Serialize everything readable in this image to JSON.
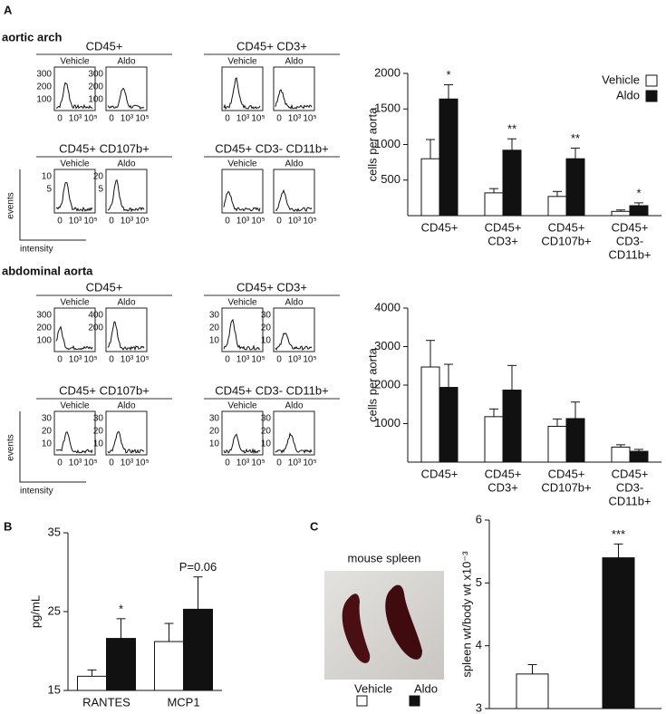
{
  "figure": {
    "panel_labels": [
      "A",
      "B",
      "C"
    ],
    "xticks": [
      "0",
      "10³",
      "10⁵"
    ],
    "axis_cartoon": {
      "y": "events",
      "x": "intensity"
    },
    "sections": [
      {
        "title": "aortic arch",
        "groups": [
          {
            "title": "CD45+",
            "panels": [
              {
                "label": "Vehicle",
                "yticks": [
                  "300",
                  "200",
                  "100"
                ]
              },
              {
                "label": "Aldo",
                "yticks": [
                  "300",
                  "200",
                  "100"
                ]
              }
            ]
          },
          {
            "title": "CD45+ CD3+",
            "panels": [
              {
                "label": "Vehicle",
                "yticks": []
              },
              {
                "label": "Aldo",
                "yticks": []
              }
            ]
          },
          {
            "title": "CD45+ CD107b+",
            "panels": [
              {
                "label": "Vehicle",
                "yticks": [
                  "10",
                  "5"
                ]
              },
              {
                "label": "Aldo",
                "yticks": [
                  "20",
                  "5"
                ]
              }
            ]
          },
          {
            "title": "CD45+ CD3- CD11b+",
            "panels": [
              {
                "label": "Vehicle",
                "yticks": []
              },
              {
                "label": "Aldo",
                "yticks": []
              }
            ]
          }
        ]
      },
      {
        "title": "abdominal aorta",
        "groups": [
          {
            "title": "CD45+",
            "panels": [
              {
                "label": "Vehicle",
                "yticks": [
                  "300",
                  "200",
                  "100"
                ]
              },
              {
                "label": "Aldo",
                "yticks": [
                  "400",
                  "200"
                ]
              }
            ]
          },
          {
            "title": "CD45+ CD3+",
            "panels": [
              {
                "label": "Vehicle",
                "yticks": [
                  "30",
                  "20",
                  "10"
                ]
              },
              {
                "label": "Aldo",
                "yticks": [
                  "30",
                  "20",
                  "10"
                ]
              }
            ]
          },
          {
            "title": "CD45+ CD107b+",
            "panels": [
              {
                "label": "Vehicle",
                "yticks": [
                  "30",
                  "20",
                  "10"
                ]
              },
              {
                "label": "Aldo",
                "yticks": [
                  "30",
                  "20",
                  "10"
                ]
              }
            ]
          },
          {
            "title": "CD45+ CD3- CD11b+",
            "panels": [
              {
                "label": "Vehicle",
                "yticks": [
                  "30",
                  "20",
                  "10"
                ]
              },
              {
                "label": "Aldo",
                "yticks": [
                  "30",
                  "20",
                  "10"
                ]
              }
            ]
          }
        ]
      }
    ],
    "photo": {
      "title": "mouse spleen"
    }
  },
  "chart_data": [
    {
      "type": "bar",
      "ylabel": "cells per aorta",
      "categories": [
        [
          "CD45+"
        ],
        [
          "CD45+",
          "CD3+"
        ],
        [
          "CD45+",
          "CD107b+"
        ],
        [
          "CD45+",
          "CD3-",
          "CD11b+"
        ]
      ],
      "series": [
        {
          "name": "Vehicle",
          "color": "#ffffff",
          "values": [
            800,
            320,
            270,
            60
          ],
          "errors": [
            270,
            60,
            70,
            20
          ]
        },
        {
          "name": "Aldo",
          "color": "#111111",
          "values": [
            1640,
            920,
            800,
            140
          ],
          "errors": [
            200,
            160,
            150,
            40
          ]
        }
      ],
      "significance": [
        "*",
        "**",
        "**",
        "*"
      ],
      "ylim": [
        0,
        2000
      ],
      "yticks": [
        500,
        1000,
        1500,
        2000
      ],
      "legend": "top-right"
    },
    {
      "type": "bar",
      "ylabel": "cells per aorta",
      "categories": [
        [
          "CD45+"
        ],
        [
          "CD45+",
          "CD3+"
        ],
        [
          "CD45+",
          "CD107b+"
        ],
        [
          "CD45+",
          "CD3-",
          "CD11b+"
        ]
      ],
      "series": [
        {
          "name": "Vehicle",
          "color": "#ffffff",
          "values": [
            2470,
            1180,
            930,
            390
          ],
          "errors": [
            690,
            200,
            190,
            60
          ]
        },
        {
          "name": "Aldo",
          "color": "#111111",
          "values": [
            1940,
            1870,
            1130,
            280
          ],
          "errors": [
            600,
            640,
            430,
            50
          ]
        }
      ],
      "ylim": [
        0,
        4000
      ],
      "yticks": [
        1000,
        2000,
        3000,
        4000
      ]
    },
    {
      "type": "bar",
      "ylabel": "pg/mL",
      "categories": [
        [
          "RANTES"
        ],
        [
          "MCP1"
        ]
      ],
      "series": [
        {
          "name": "Vehicle",
          "color": "#ffffff",
          "values": [
            16.8,
            21.2
          ],
          "errors": [
            0.8,
            2.3
          ]
        },
        {
          "name": "Aldo",
          "color": "#111111",
          "values": [
            21.6,
            25.3
          ],
          "errors": [
            2.5,
            4.1
          ]
        }
      ],
      "significance": [
        "*",
        "P=0.06"
      ],
      "ylim": [
        15,
        35
      ],
      "yticks": [
        15,
        25,
        35
      ]
    },
    {
      "type": "bar",
      "ylabel": "spleen wt/body wt x10⁻³",
      "categories": [
        null
      ],
      "series": [
        {
          "name": "Vehicle",
          "color": "#ffffff",
          "values": [
            3.55
          ],
          "errors": [
            0.15
          ]
        },
        {
          "name": "Aldo",
          "color": "#111111",
          "values": [
            5.4
          ],
          "errors": [
            0.22
          ]
        }
      ],
      "significance": [
        "***"
      ],
      "ylim": [
        3,
        6
      ],
      "yticks": [
        3,
        4,
        5,
        6
      ],
      "legend": "left"
    }
  ]
}
